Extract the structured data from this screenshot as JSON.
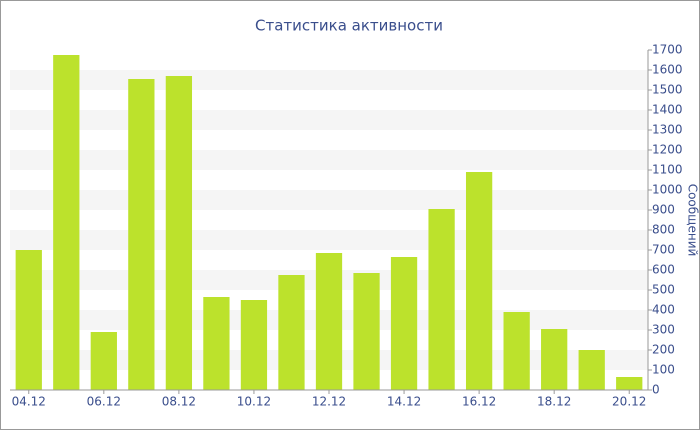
{
  "chart_data": {
    "type": "bar",
    "title": "Статистика активности",
    "y_label": "Сообщений",
    "categories": [
      "04.12",
      null,
      "06.12",
      null,
      "08.12",
      null,
      "10.12",
      null,
      "12.12",
      null,
      "14.12",
      null,
      "16.12",
      null,
      "18.12",
      null,
      "20.12"
    ],
    "values": [
      700,
      1675,
      290,
      1555,
      1570,
      465,
      450,
      575,
      685,
      585,
      665,
      905,
      1090,
      390,
      305,
      200,
      65
    ],
    "color": "#bce22c",
    "ylim": [
      0,
      1700
    ],
    "yticks": [
      0,
      100,
      200,
      300,
      400,
      500,
      600,
      700,
      800,
      900,
      1000,
      1100,
      1200,
      1300,
      1400,
      1500,
      1600,
      1700
    ],
    "grid": true
  }
}
